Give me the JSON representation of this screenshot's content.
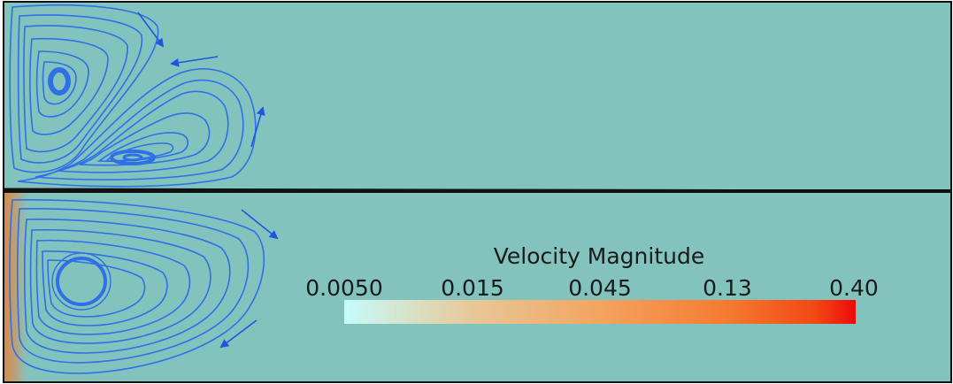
{
  "colors": {
    "background": "#83c3bd",
    "streamline": "#2f6fe8",
    "arrow": "#1f55e0",
    "frame": "#111111"
  },
  "colorbar": {
    "title": "Velocity Magnitude",
    "ticks": [
      "0.0050",
      "0.015",
      "0.045",
      "0.13",
      "0.40"
    ],
    "gradient": [
      "#c6fbfb",
      "#e8c898",
      "#f3a460",
      "#f57a30",
      "#f24815",
      "#ee0a0a"
    ]
  }
}
